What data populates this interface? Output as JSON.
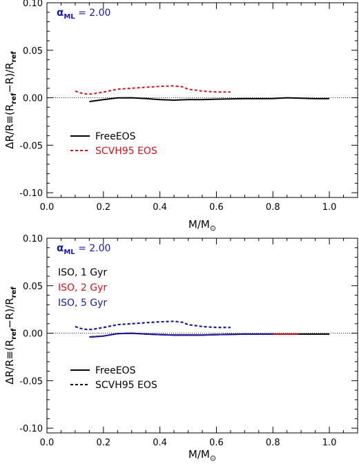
{
  "chart_data": [
    {
      "type": "line",
      "annotation": {
        "symbol": "α",
        "subscript": "ML",
        "text": " = 2.00",
        "color": "#1a1aa6"
      },
      "xlim": [
        0.0,
        1.1
      ],
      "ylim": [
        -0.105,
        0.1
      ],
      "xticks": [
        "0.0",
        "0.2",
        "0.4",
        "0.6",
        "0.8",
        "1.0"
      ],
      "yticks": [
        "0.10",
        "0.05",
        "0.00",
        "-0.05",
        "-0.10"
      ],
      "xlabel": {
        "main": "M/M",
        "sub": "⊙"
      },
      "ylabel": {
        "a": "ΔR/R≡(R",
        "a_sub": "ref",
        "b": "−R)/R",
        "b_sub": "ref"
      },
      "zero_line": true,
      "series": [
        {
          "name": "FreeEOS",
          "style": "solid",
          "color": "#000000",
          "x": [
            0.15,
            0.2,
            0.25,
            0.3,
            0.35,
            0.4,
            0.45,
            0.5,
            0.55,
            0.6,
            0.65,
            0.7,
            0.75,
            0.8,
            0.85,
            0.9,
            0.95,
            1.0
          ],
          "y": [
            -0.004,
            -0.002,
            -0.0002,
            0.0,
            -0.0008,
            -0.002,
            -0.0025,
            -0.002,
            -0.002,
            -0.0015,
            -0.0012,
            -0.001,
            -0.001,
            -0.0008,
            0.0,
            -0.0005,
            -0.001,
            -0.001
          ]
        },
        {
          "name": "SCVH95 EOS",
          "style": "dashed",
          "color": "#d0141a",
          "x": [
            0.1,
            0.12,
            0.14,
            0.16,
            0.2,
            0.25,
            0.3,
            0.35,
            0.4,
            0.45,
            0.48,
            0.5,
            0.55,
            0.6,
            0.65
          ],
          "y": [
            0.007,
            0.005,
            0.004,
            0.004,
            0.006,
            0.009,
            0.01,
            0.011,
            0.012,
            0.0125,
            0.0115,
            0.009,
            0.007,
            0.006,
            0.006
          ]
        }
      ],
      "legend": {
        "items": [
          "FreeEOS",
          "SCVH95 EOS"
        ],
        "text_colors": [
          "#000000",
          "#d0141a"
        ]
      }
    },
    {
      "type": "line",
      "annotation": {
        "symbol": "α",
        "subscript": "ML",
        "text": " = 2.00",
        "color": "#1a1aa6"
      },
      "xlim": [
        0.0,
        1.1
      ],
      "ylim": [
        -0.105,
        0.1
      ],
      "xticks": [
        "0.0",
        "0.2",
        "0.4",
        "0.6",
        "0.8",
        "1.0"
      ],
      "yticks": [
        "0.10",
        "0.05",
        "0.00",
        "-0.05",
        "-0.10"
      ],
      "xlabel": {
        "main": "M/M",
        "sub": "⊙"
      },
      "ylabel": {
        "a": "ΔR/R≡(R",
        "a_sub": "ref",
        "b": "−R)/R",
        "b_sub": "ref"
      },
      "zero_line": true,
      "iso_labels": [
        {
          "text": "ISO,   1 Gyr",
          "color": "#000000"
        },
        {
          "text": "ISO,   2 Gyr",
          "color": "#d0141a"
        },
        {
          "text": "ISO,   5 Gyr",
          "color": "#1a1aa6"
        }
      ],
      "series": [
        {
          "name": "FreeEOS 1 Gyr",
          "style": "solid",
          "color": "#000000",
          "x": [
            0.15,
            0.2,
            0.25,
            0.3,
            0.35,
            0.4,
            0.45,
            0.5,
            0.55,
            0.6,
            0.65,
            0.7,
            0.75,
            0.8,
            0.85,
            0.9,
            0.95,
            1.0
          ],
          "y": [
            -0.004,
            -0.003,
            -0.0005,
            0.0,
            -0.0008,
            -0.0015,
            -0.002,
            -0.002,
            -0.002,
            -0.0015,
            -0.0012,
            -0.001,
            -0.001,
            -0.001,
            -0.0008,
            -0.001,
            -0.001,
            -0.001
          ]
        },
        {
          "name": "FreeEOS 2 Gyr",
          "style": "solid",
          "color": "#d0141a",
          "x": [
            0.15,
            0.2,
            0.25,
            0.3,
            0.35,
            0.4,
            0.45,
            0.5,
            0.55,
            0.6,
            0.65,
            0.7,
            0.75,
            0.8,
            0.85,
            0.89
          ],
          "y": [
            -0.004,
            -0.003,
            -0.0004,
            0.0,
            -0.0008,
            -0.0015,
            -0.002,
            -0.002,
            -0.002,
            -0.0015,
            -0.0012,
            -0.001,
            -0.001,
            -0.001,
            -0.001,
            -0.001
          ]
        },
        {
          "name": "FreeEOS 5 Gyr",
          "style": "solid",
          "color": "#1a1aa6",
          "x": [
            0.15,
            0.2,
            0.25,
            0.3,
            0.35,
            0.4,
            0.45,
            0.5,
            0.55,
            0.6,
            0.65,
            0.7,
            0.75,
            0.8
          ],
          "y": [
            -0.004,
            -0.003,
            -0.0004,
            0.0,
            -0.0008,
            -0.0015,
            -0.002,
            -0.002,
            -0.002,
            -0.0015,
            -0.0012,
            -0.001,
            -0.001,
            -0.001
          ]
        },
        {
          "name": "SCVH95 EOS 1 Gyr",
          "style": "dashed",
          "color": "#000000",
          "x": [
            0.1,
            0.12,
            0.14,
            0.16,
            0.2,
            0.25,
            0.3,
            0.35,
            0.4,
            0.45,
            0.48,
            0.5,
            0.55,
            0.6,
            0.65
          ],
          "y": [
            0.007,
            0.005,
            0.004,
            0.004,
            0.006,
            0.009,
            0.01,
            0.011,
            0.012,
            0.0125,
            0.0115,
            0.009,
            0.007,
            0.006,
            0.006
          ]
        },
        {
          "name": "SCVH95 EOS 5 Gyr",
          "style": "dashed",
          "color": "#1a1aa6",
          "x": [
            0.1,
            0.12,
            0.14,
            0.16,
            0.2,
            0.25,
            0.3,
            0.35,
            0.4,
            0.45,
            0.48,
            0.5,
            0.55,
            0.6,
            0.65
          ],
          "y": [
            0.007,
            0.005,
            0.004,
            0.004,
            0.006,
            0.009,
            0.01,
            0.011,
            0.012,
            0.0125,
            0.0115,
            0.009,
            0.007,
            0.006,
            0.006
          ]
        }
      ],
      "legend": {
        "items": [
          "FreeEOS",
          "SCVH95 EOS"
        ],
        "text_colors": [
          "#000000",
          "#000000"
        ]
      }
    }
  ]
}
